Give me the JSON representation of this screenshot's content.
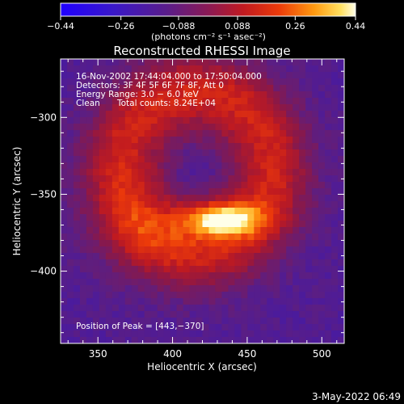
{
  "chart_data": {
    "type": "heatmap",
    "title": "Reconstructed RHESSI Image",
    "xlabel": "Heliocentric X (arcsec)",
    "ylabel": "Heliocentric Y (arcsec)",
    "xlim": [
      325,
      515
    ],
    "ylim": [
      -447,
      -262
    ],
    "xticks": [
      {
        "value": 350,
        "label": "350"
      },
      {
        "value": 400,
        "label": "400"
      },
      {
        "value": 450,
        "label": "450"
      },
      {
        "value": 500,
        "label": "500"
      }
    ],
    "yticks": [
      {
        "value": -300,
        "label": "−300"
      },
      {
        "value": -350,
        "label": "−350"
      },
      {
        "value": -400,
        "label": "−400"
      }
    ],
    "colorbar": {
      "range": [
        -0.44,
        0.44
      ],
      "ticks": [
        {
          "value": -0.44,
          "label": "−0.44"
        },
        {
          "value": -0.26,
          "label": "−0.26"
        },
        {
          "value": -0.088,
          "label": "−0.088"
        },
        {
          "value": 0.088,
          "label": "0.088"
        },
        {
          "value": 0.26,
          "label": "0.26"
        },
        {
          "value": 0.44,
          "label": "0.44"
        }
      ],
      "unit": "(photons cm⁻² s⁻¹ asec⁻²)"
    },
    "annotations": {
      "time_range": "16‐Nov‐2002 17:44:04.000 to 17:50:04.000",
      "detectors": "Detectors: 3F 4F 5F 6F 7F 8F, Att 0",
      "energy": "Energy Range: 3.0 − 6.0 keV",
      "clean": "Clean",
      "total_counts": "Total counts: 8.24E+04",
      "peak": "Position of Peak = [443,−370]"
    },
    "peak_position": [
      443,
      -370
    ],
    "peak_value": 0.44,
    "ring": {
      "center": [
        416,
        -335
      ],
      "radius": 52
    },
    "footer_date": "3‐May‐2022 06:49"
  },
  "colors": {
    "background": "#000000",
    "low": "#2b00ff",
    "mid": "#5a1fa0",
    "high": "#ffffe0"
  }
}
